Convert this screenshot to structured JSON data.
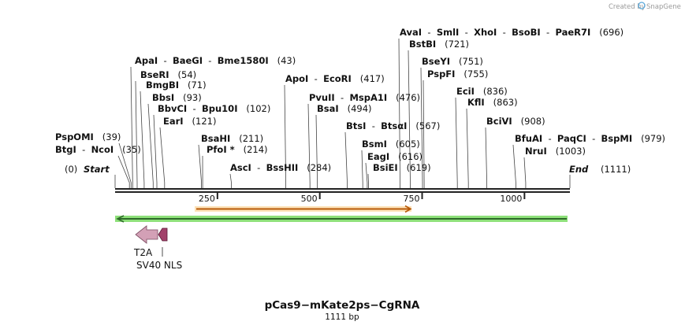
{
  "credit": "Created by",
  "brand": "SnapGene",
  "title": "pCas9−mKate2ps−CgRNA",
  "subtitle": "1111 bp",
  "seq_length": 1111,
  "colors": {
    "backbone": "#222222",
    "orange_arrow": "#f0a020",
    "green_arrow": "#5fcf3f",
    "t2a": "#d3a0b6",
    "nls": "#a2416a"
  },
  "ticks": [
    250,
    500,
    750,
    1000
  ],
  "start_label": {
    "name": "Start",
    "pos": "(0)"
  },
  "end_label": {
    "name": "End",
    "pos": "(1111)"
  },
  "sites": [
    {
      "names": [
        "BtgI",
        "NcoI"
      ],
      "pos": "(35)",
      "bp": 35
    },
    {
      "names": [
        "PspOMI"
      ],
      "pos": "(39)",
      "bp": 39
    },
    {
      "names": [
        "ApaI",
        "BaeGI",
        "Bme1580I"
      ],
      "pos": "(43)",
      "bp": 43
    },
    {
      "names": [
        "BseRI"
      ],
      "pos": "(54)",
      "bp": 54
    },
    {
      "names": [
        "BmgBI"
      ],
      "pos": "(71)",
      "bp": 71
    },
    {
      "names": [
        "BbsI"
      ],
      "pos": "(93)",
      "bp": 93
    },
    {
      "names": [
        "BbvCI",
        "Bpu10I"
      ],
      "pos": "(102)",
      "bp": 102
    },
    {
      "names": [
        "EarI"
      ],
      "pos": "(121)",
      "bp": 121
    },
    {
      "names": [
        "BsaHI"
      ],
      "pos": "(211)",
      "bp": 211
    },
    {
      "names": [
        "PfoI *"
      ],
      "pos": "(214)",
      "bp": 214
    },
    {
      "names": [
        "AscI",
        "BssHII"
      ],
      "pos": "(284)",
      "bp": 284
    },
    {
      "names": [
        "ApoI",
        "EcoRI"
      ],
      "pos": "(417)",
      "bp": 417
    },
    {
      "names": [
        "PvuII",
        "MspA1I"
      ],
      "pos": "(476)",
      "bp": 476
    },
    {
      "names": [
        "BsaI"
      ],
      "pos": "(494)",
      "bp": 494
    },
    {
      "names": [
        "BtsI",
        "BtsαI"
      ],
      "pos": "(567)",
      "bp": 567
    },
    {
      "names": [
        "BsmI"
      ],
      "pos": "(605)",
      "bp": 605
    },
    {
      "names": [
        "EagI"
      ],
      "pos": "(616)",
      "bp": 616
    },
    {
      "names": [
        "BsiEI"
      ],
      "pos": "(619)",
      "bp": 619
    },
    {
      "names": [
        "AvaI",
        "SmlI",
        "XhoI",
        "BsoBI",
        "PaeR7I"
      ],
      "pos": "(696)",
      "bp": 696
    },
    {
      "names": [
        "BstBI"
      ],
      "pos": "(721)",
      "bp": 721
    },
    {
      "names": [
        "BseYI"
      ],
      "pos": "(751)",
      "bp": 751
    },
    {
      "names": [
        "PspFI"
      ],
      "pos": "(755)",
      "bp": 755
    },
    {
      "names": [
        "EciI"
      ],
      "pos": "(836)",
      "bp": 836
    },
    {
      "names": [
        "KflI"
      ],
      "pos": "(863)",
      "bp": 863
    },
    {
      "names": [
        "BciVI"
      ],
      "pos": "(908)",
      "bp": 908
    },
    {
      "names": [
        "BfuAI",
        "PaqCI",
        "BspMI"
      ],
      "pos": "(979)",
      "bp": 979
    },
    {
      "names": [
        "NruI"
      ],
      "pos": "(1003)",
      "bp": 1003
    }
  ],
  "features": [
    {
      "label": "T2A",
      "direction": "reverse"
    },
    {
      "label": "SV40 NLS",
      "direction": "reverse"
    }
  ]
}
